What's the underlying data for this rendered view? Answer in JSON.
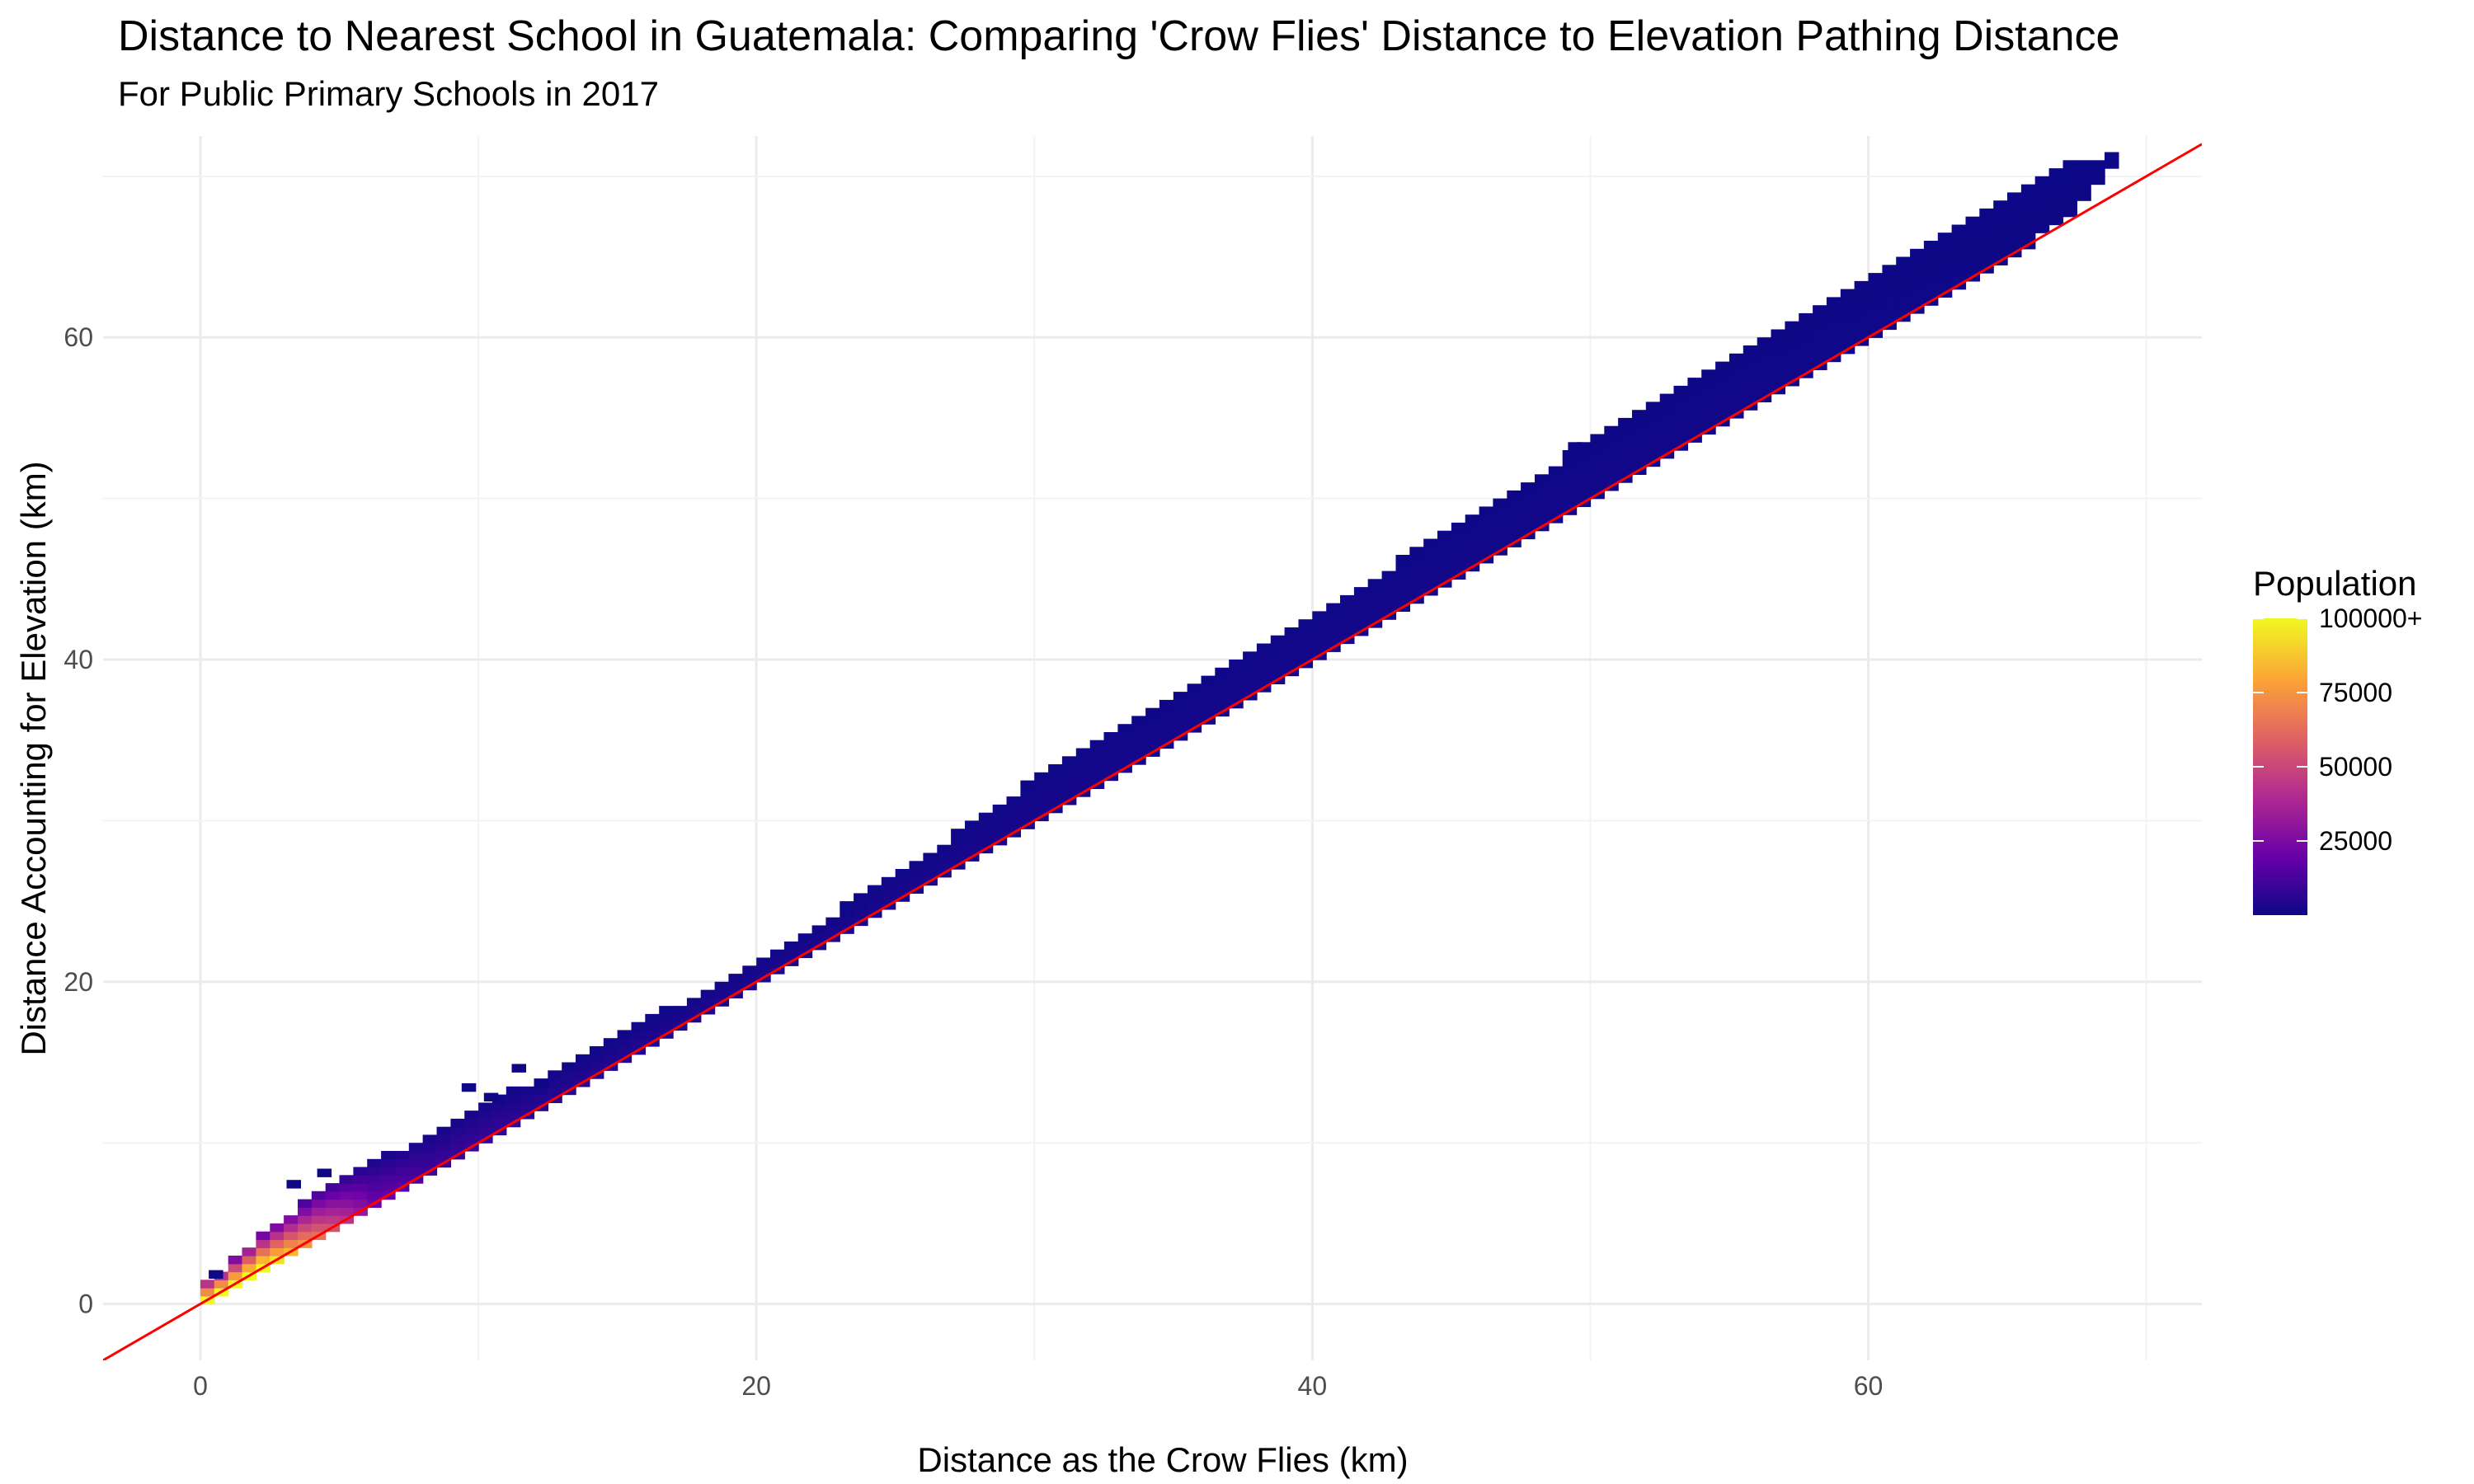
{
  "chart_data": {
    "type": "heatmap",
    "title": "Distance to Nearest School in Guatemala: Comparing 'Crow Flies' Distance to Elevation Pathing Distance",
    "subtitle": "For Public Primary Schools in 2017",
    "xlabel": "Distance as the Crow Flies (km)",
    "ylabel": "Distance Accounting for Elevation (km)",
    "xlim": [
      -3.5,
      72
    ],
    "ylim": [
      -3.5,
      72.5
    ],
    "x_ticks": [
      0,
      20,
      40,
      60
    ],
    "x_tick_labels": [
      "0",
      "20",
      "40",
      "60"
    ],
    "y_ticks": [
      0,
      20,
      40,
      60
    ],
    "y_tick_labels": [
      "0",
      "20",
      "40",
      "60"
    ],
    "grid": true,
    "bin_width_km": 0.5,
    "reference_line": {
      "slope": 1,
      "intercept": 0,
      "color": "#ff0000"
    },
    "legend": {
      "title": "Population",
      "position": "right",
      "min": 0,
      "max": 100000,
      "tick_values": [
        100000,
        75000,
        50000,
        25000
      ],
      "tick_labels": [
        "100000+",
        "75000",
        "50000",
        "25000"
      ],
      "colors": [
        "#0d0887",
        "#6a00a8",
        "#b12a90",
        "#e16462",
        "#fca636",
        "#f0f921"
      ]
    },
    "band": [
      {
        "x": 0.5,
        "excess_min": 0.0,
        "excess_max": 1.5,
        "population": 100000
      },
      {
        "x": 2,
        "excess_min": 0.1,
        "excess_max": 2.2,
        "population": 100000
      },
      {
        "x": 4,
        "excess_min": 0.2,
        "excess_max": 2.8,
        "population": 60000
      },
      {
        "x": 6,
        "excess_min": 0.2,
        "excess_max": 2.6,
        "population": 20000
      },
      {
        "x": 8,
        "excess_min": 0.2,
        "excess_max": 2.3,
        "population": 10000
      },
      {
        "x": 10,
        "excess_min": 0.3,
        "excess_max": 2.3,
        "population": 8000
      },
      {
        "x": 12,
        "excess_min": 0.3,
        "excess_max": 1.8,
        "population": 5000
      },
      {
        "x": 15,
        "excess_min": 0.3,
        "excess_max": 1.6,
        "population": 4000
      },
      {
        "x": 20,
        "excess_min": 0.2,
        "excess_max": 1.3,
        "population": 3000
      },
      {
        "x": 25,
        "excess_min": 0.3,
        "excess_max": 1.7,
        "population": 2500
      },
      {
        "x": 30,
        "excess_min": 0.3,
        "excess_max": 2.6,
        "population": 2000
      },
      {
        "x": 35,
        "excess_min": 0.4,
        "excess_max": 2.6,
        "population": 1500
      },
      {
        "x": 40,
        "excess_min": 0.4,
        "excess_max": 2.8,
        "population": 1500
      },
      {
        "x": 45,
        "excess_min": 0.4,
        "excess_max": 3.2,
        "population": 1000
      },
      {
        "x": 50,
        "excess_min": 0.3,
        "excess_max": 3.6,
        "population": 1000
      },
      {
        "x": 55,
        "excess_min": 0.4,
        "excess_max": 3.6,
        "population": 800
      },
      {
        "x": 60,
        "excess_min": 0.3,
        "excess_max": 3.7,
        "population": 500
      },
      {
        "x": 64,
        "excess_min": 0.3,
        "excess_max": 3.8,
        "population": 300
      },
      {
        "x": 67,
        "excess_min": 0.6,
        "excess_max": 3.6,
        "population": 200
      },
      {
        "x": 68.5,
        "excess_min": 2.2,
        "excess_max": 2.6,
        "population": 100
      }
    ],
    "outliers": [
      {
        "x": 0.3,
        "y": 1.6,
        "population": 500
      },
      {
        "x": 3.1,
        "y": 7.2,
        "population": 300
      },
      {
        "x": 4.2,
        "y": 7.9,
        "population": 300
      },
      {
        "x": 9.4,
        "y": 13.2,
        "population": 300
      },
      {
        "x": 10.2,
        "y": 12.6,
        "population": 300
      },
      {
        "x": 11.2,
        "y": 14.4,
        "population": 300
      },
      {
        "x": 12.0,
        "y": 13.4,
        "population": 300
      },
      {
        "x": 49.2,
        "y": 53.0,
        "population": 300
      },
      {
        "x": 65.2,
        "y": 67.2,
        "population": 300
      },
      {
        "x": 66.2,
        "y": 68.0,
        "population": 300
      }
    ]
  }
}
